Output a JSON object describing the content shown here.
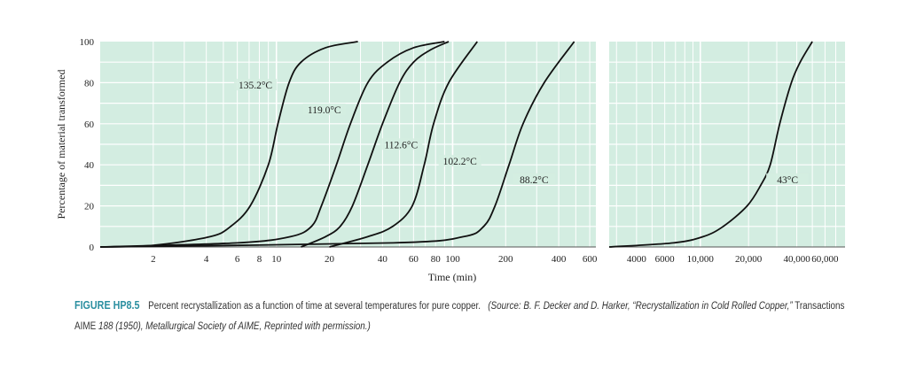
{
  "chart_data": {
    "type": "line",
    "xlabel": "Time (min)",
    "ylabel": "Percentage of material transformed",
    "xscale": "log",
    "grid": true,
    "colors": {
      "plot_background": "#d3ede1",
      "grid": "#ffffff",
      "line": "#111111"
    },
    "panels": [
      {
        "xlim": [
          1,
          650
        ],
        "xticks": [
          2,
          4,
          6,
          8,
          10,
          20,
          40,
          60,
          80,
          100,
          200,
          400,
          600
        ],
        "xtick_labels": [
          "2",
          "4",
          "6",
          "8",
          "10",
          "20",
          "40",
          "60",
          "80",
          "100",
          "200",
          "400",
          "600"
        ]
      },
      {
        "xlim": [
          2700,
          80000
        ],
        "xticks": [
          4000,
          6000,
          10000,
          20000,
          40000,
          60000
        ],
        "xtick_labels": [
          "4000",
          "6000",
          "10,000",
          "20,000",
          "40,000",
          "60,000"
        ]
      }
    ],
    "ylim": [
      0,
      100
    ],
    "yticks": [
      0,
      20,
      40,
      60,
      80,
      100
    ],
    "ytick_labels": [
      "0",
      "20",
      "40",
      "60",
      "80",
      "100"
    ],
    "series": [
      {
        "name": "135.2°C",
        "panel": 0,
        "label_at": [
          7.6,
          78
        ],
        "x": [
          1,
          2,
          4.2,
          5.5,
          7.1,
          9.0,
          10.2,
          11.8,
          13.8,
          19,
          29
        ],
        "y": [
          0,
          0.8,
          5,
          10,
          20,
          40,
          60,
          80,
          90,
          97,
          100
        ]
      },
      {
        "name": "119.0°C",
        "panel": 0,
        "label_at": [
          18.7,
          66
        ],
        "x": [
          1,
          6,
          12,
          15.8,
          18,
          21.9,
          26.3,
          33,
          42.6,
          60,
          90
        ],
        "y": [
          0,
          2,
          5,
          10,
          20,
          40,
          60,
          80,
          90,
          97,
          100
        ]
      },
      {
        "name": "112.6°C",
        "panel": 0,
        "label_at": [
          51,
          49
        ],
        "x": [
          13.8,
          19,
          23,
          27,
          33,
          40,
          50,
          60,
          75,
          95
        ],
        "y": [
          0,
          5,
          10,
          20,
          40,
          60,
          80,
          90,
          96,
          100
        ]
      },
      {
        "name": "102.2°C",
        "panel": 0,
        "label_at": [
          110,
          41
        ],
        "x": [
          20,
          33,
          45.7,
          59,
          69,
          78,
          95,
          138
        ],
        "y": [
          0,
          5,
          10,
          20,
          40,
          60,
          80,
          100
        ]
      },
      {
        "name": "88.2°C",
        "panel": 0,
        "label_at": [
          290,
          32
        ],
        "x": [
          1,
          46,
          115,
          150,
          174,
          209,
          251,
          331,
          490
        ],
        "y": [
          0,
          2,
          5,
          10,
          20,
          40,
          60,
          80,
          100
        ]
      },
      {
        "name": "43°C",
        "panel": 1,
        "label_at": [
          35000,
          32
        ],
        "x": [
          2700,
          6800,
          10400,
          13900,
          19600,
          23800,
          27300,
          31300,
          37000,
          42000,
          50000
        ],
        "y": [
          0,
          2,
          5,
          10,
          20,
          30,
          40,
          60,
          80,
          90,
          100
        ]
      }
    ]
  },
  "caption": {
    "figure_label": "FIGURE HP8.5",
    "text": "Percent recrystallization as a function of time at several temperatures for pure copper.",
    "source_1": "(Source: B. F. Decker and D. Harker, “Recrystallization in Cold Rolled Copper,”",
    "source_2": "Transactions AIME",
    "source_3": "188 (1950), Metallurgical Society of AIME, Reprinted with permission.)"
  }
}
